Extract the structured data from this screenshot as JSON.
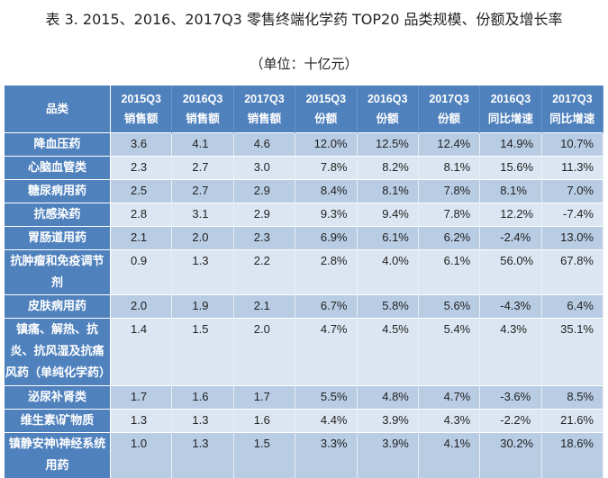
{
  "title": "表 3. 2015、2016、2017Q3 零售终端化学药 TOP20 品类规模、份额及增长率",
  "unit": "（单位：十亿元）",
  "table": {
    "headers": [
      {
        "line1": "品类",
        "line2": ""
      },
      {
        "line1": "2015Q3",
        "line2": "销售额"
      },
      {
        "line1": "2016Q3",
        "line2": "销售额"
      },
      {
        "line1": "2017Q3",
        "line2": "销售额"
      },
      {
        "line1": "2015Q3",
        "line2": "份额"
      },
      {
        "line1": "2016Q3",
        "line2": "份额"
      },
      {
        "line1": "2017Q3",
        "line2": "份额"
      },
      {
        "line1": "2016Q3",
        "line2": "同比增速"
      },
      {
        "line1": "2017Q3",
        "line2": "同比增速"
      }
    ],
    "rows": [
      {
        "cat": "降血压药",
        "v": [
          "3.6",
          "4.1",
          "4.6",
          "12.0%",
          "12.5%",
          "12.4%",
          "14.9%",
          "10.7%"
        ]
      },
      {
        "cat": "心脑血管类",
        "v": [
          "2.3",
          "2.7",
          "3.0",
          "7.8%",
          "8.2%",
          "8.1%",
          "15.6%",
          "11.3%"
        ]
      },
      {
        "cat": "糖尿病用药",
        "v": [
          "2.5",
          "2.7",
          "2.9",
          "8.4%",
          "8.1%",
          "7.8%",
          "8.1%",
          "7.0%"
        ]
      },
      {
        "cat": "抗感染药",
        "v": [
          "2.8",
          "3.1",
          "2.9",
          "9.3%",
          "9.4%",
          "7.8%",
          "12.2%",
          "-7.4%"
        ]
      },
      {
        "cat": "胃肠道用药",
        "v": [
          "2.1",
          "2.0",
          "2.3",
          "6.9%",
          "6.1%",
          "6.2%",
          "-2.4%",
          "13.0%"
        ]
      },
      {
        "cat": "抗肿瘤和免疫调节剂",
        "v": [
          "0.9",
          "1.3",
          "2.2",
          "2.8%",
          "4.0%",
          "6.1%",
          "56.0%",
          "67.8%"
        ]
      },
      {
        "cat": "皮肤病用药",
        "v": [
          "2.0",
          "1.9",
          "2.1",
          "6.7%",
          "5.8%",
          "5.6%",
          "-4.3%",
          "6.4%"
        ]
      },
      {
        "cat": "镇痛、解热、抗炎、抗风湿及抗痛风药（单纯化学药）",
        "v": [
          "1.4",
          "1.5",
          "2.0",
          "4.7%",
          "4.5%",
          "5.4%",
          "4.3%",
          "35.1%"
        ]
      },
      {
        "cat": "泌尿补肾类",
        "v": [
          "1.7",
          "1.6",
          "1.7",
          "5.5%",
          "4.8%",
          "4.7%",
          "-3.6%",
          "8.5%"
        ]
      },
      {
        "cat": "维生素\\矿物质",
        "v": [
          "1.3",
          "1.3",
          "1.6",
          "4.4%",
          "3.9%",
          "4.3%",
          "-2.2%",
          "21.6%"
        ]
      },
      {
        "cat": "镇静安神\\神经系统用药",
        "v": [
          "1.0",
          "1.3",
          "1.5",
          "3.3%",
          "3.9%",
          "4.1%",
          "30.2%",
          "18.6%"
        ]
      }
    ]
  },
  "colors": {
    "header": "#4f81bd",
    "row_dark": "#b8cce4",
    "row_light": "#dce6f2"
  }
}
